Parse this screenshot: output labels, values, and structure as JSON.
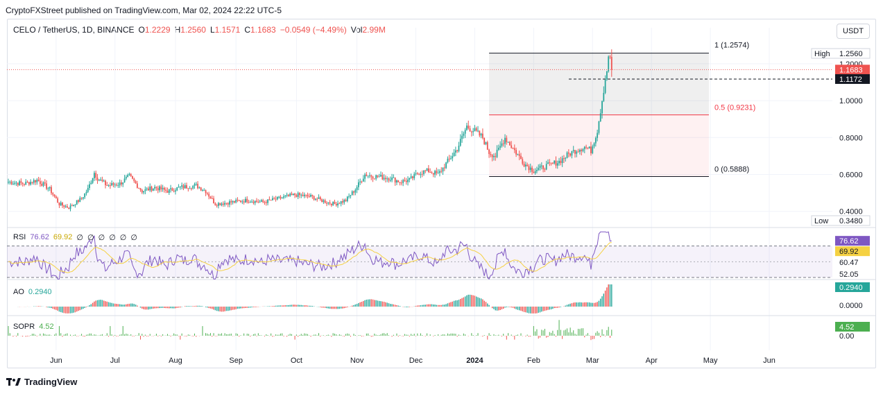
{
  "header": {
    "published": "CryptoFXStreet published on TradingView.com, Mar 02, 2024 22:22 UTC-5"
  },
  "legend": {
    "symbol": "CELO / TetherUS, 1D, BINANCE",
    "o_label": "O",
    "o": "1.2229",
    "h_label": "H",
    "h": "1.2560",
    "l_label": "L",
    "l": "1.1571",
    "c_label": "C",
    "c": "1.1683",
    "change": "−0.0549 (−4.49%)",
    "vol_label": "Vol",
    "vol": "2.99M"
  },
  "currency_button": "USDT",
  "logo_text": "TradingView",
  "colors": {
    "up": "#26a69a",
    "down": "#ef5350",
    "rsi": "#7e57c2",
    "rsi_ma": "#f5d142",
    "fib_red": "#f23645"
  },
  "chart_data": {
    "type": "candlestick",
    "x_ticks": [
      "Jun",
      "Jul",
      "Aug",
      "Sep",
      "Oct",
      "Nov",
      "Dec",
      "2024",
      "Feb",
      "Mar",
      "Apr",
      "May",
      "Jun"
    ],
    "y_ticks": [
      "1.2000",
      "1.0000",
      "0.8000",
      "0.6000",
      "0.4000"
    ],
    "ylim": [
      0.35,
      1.32
    ],
    "last_price": "1.1683",
    "level_price": "1.1172",
    "high_label": "High",
    "high_value": "1.2560",
    "low_label": "Low",
    "low_value": "0.3480",
    "fib": {
      "l1": "1 (1.2574)",
      "l05": "0.5 (0.9231)",
      "l0": "0 (0.5888)",
      "v1": 1.2574,
      "v05": 0.9231,
      "v0": 0.5888
    },
    "anchors": [
      [
        0,
        0.56
      ],
      [
        10,
        0.55
      ],
      [
        18,
        0.57
      ],
      [
        26,
        0.52
      ],
      [
        32,
        0.44
      ],
      [
        38,
        0.42
      ],
      [
        46,
        0.47
      ],
      [
        50,
        0.52
      ],
      [
        54,
        0.61
      ],
      [
        56,
        0.58
      ],
      [
        62,
        0.54
      ],
      [
        70,
        0.55
      ],
      [
        76,
        0.59
      ],
      [
        84,
        0.51
      ],
      [
        92,
        0.53
      ],
      [
        100,
        0.51
      ],
      [
        108,
        0.53
      ],
      [
        118,
        0.54
      ],
      [
        124,
        0.51
      ],
      [
        130,
        0.44
      ],
      [
        140,
        0.45
      ],
      [
        150,
        0.46
      ],
      [
        160,
        0.45
      ],
      [
        170,
        0.47
      ],
      [
        180,
        0.49
      ],
      [
        190,
        0.48
      ],
      [
        200,
        0.45
      ],
      [
        205,
        0.44
      ],
      [
        212,
        0.46
      ],
      [
        218,
        0.52
      ],
      [
        224,
        0.6
      ],
      [
        230,
        0.59
      ],
      [
        240,
        0.58
      ],
      [
        246,
        0.56
      ],
      [
        252,
        0.57
      ],
      [
        258,
        0.61
      ],
      [
        264,
        0.62
      ],
      [
        270,
        0.6
      ],
      [
        276,
        0.67
      ],
      [
        282,
        0.74
      ],
      [
        288,
        0.86
      ],
      [
        292,
        0.84
      ],
      [
        298,
        0.8
      ],
      [
        302,
        0.72
      ],
      [
        306,
        0.7
      ],
      [
        312,
        0.8
      ],
      [
        318,
        0.73
      ],
      [
        324,
        0.66
      ],
      [
        330,
        0.62
      ],
      [
        336,
        0.64
      ],
      [
        346,
        0.67
      ],
      [
        352,
        0.71
      ],
      [
        356,
        0.73
      ],
      [
        362,
        0.75
      ],
      [
        366,
        0.73
      ],
      [
        370,
        0.84
      ],
      [
        372,
        0.95
      ],
      [
        375,
        1.12
      ],
      [
        377,
        1.22
      ],
      [
        378,
        1.24
      ],
      [
        379,
        1.1683
      ]
    ],
    "rsi": {
      "label": "RSI",
      "value": "76.62",
      "ma": "69.92",
      "extra": [
        "∅",
        "∅",
        "∅",
        "∅",
        "∅",
        "∅"
      ],
      "levels": [
        "60.47",
        "52.05"
      ]
    },
    "ao": {
      "label": "AO",
      "value": "0.2940",
      "zero": "0.0000"
    },
    "sopr": {
      "label": "SOPR",
      "value": "4.52",
      "zero": "0.00"
    }
  }
}
